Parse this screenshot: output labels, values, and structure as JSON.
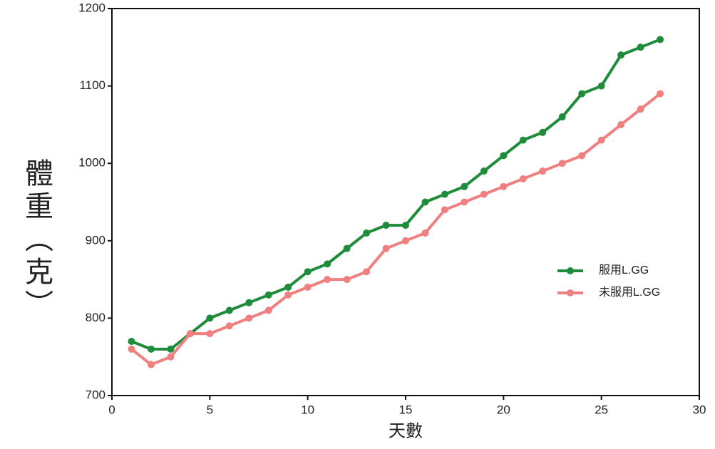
{
  "chart_data": {
    "type": "line",
    "x_label": "天數",
    "y_label": "體重（克）",
    "x": [
      1,
      2,
      3,
      4,
      5,
      6,
      7,
      8,
      9,
      10,
      11,
      12,
      13,
      14,
      15,
      16,
      17,
      18,
      19,
      20,
      21,
      22,
      23,
      24,
      25,
      26,
      27,
      28
    ],
    "series": [
      {
        "name": "服用L.GG",
        "color": "#1e8c3a",
        "values": [
          770,
          760,
          760,
          780,
          800,
          810,
          820,
          830,
          840,
          860,
          870,
          890,
          910,
          920,
          920,
          950,
          960,
          970,
          990,
          1010,
          1030,
          1040,
          1060,
          1090,
          1100,
          1140,
          1150,
          1160
        ]
      },
      {
        "name": "未服用L.GG",
        "color": "#f08080",
        "values": [
          760,
          740,
          750,
          780,
          780,
          790,
          800,
          810,
          830,
          840,
          850,
          850,
          860,
          890,
          900,
          910,
          940,
          950,
          960,
          970,
          980,
          990,
          1000,
          1010,
          1030,
          1050,
          1070,
          1090
        ]
      }
    ],
    "xlim": [
      0,
      30
    ],
    "xticks": [
      0,
      5,
      10,
      15,
      20,
      25,
      30
    ],
    "ylim": [
      700,
      1200
    ],
    "yticks": [
      700,
      800,
      900,
      1000,
      1100,
      1200
    ],
    "grid": false,
    "legend": "right"
  }
}
